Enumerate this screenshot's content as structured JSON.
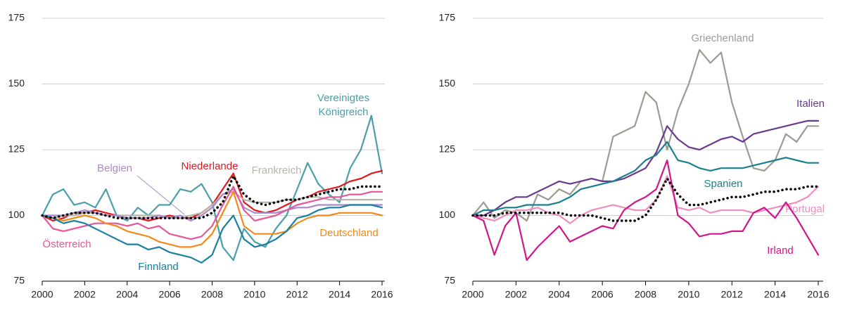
{
  "chart_data": [
    {
      "type": "line",
      "xlim": [
        2000,
        2016
      ],
      "xticks": [
        2000,
        2002,
        2004,
        2006,
        2008,
        2010,
        2012,
        2014,
        2016
      ],
      "ylim": [
        75,
        175
      ],
      "yticks": [
        75,
        100,
        125,
        150,
        175
      ],
      "grid": true,
      "x": [
        2000,
        2000.5,
        2001,
        2001.5,
        2002,
        2002.5,
        2003,
        2003.5,
        2004,
        2004.5,
        2005,
        2005.5,
        2006,
        2006.5,
        2007,
        2007.5,
        2008,
        2008.5,
        2009,
        2009.5,
        2010,
        2010.5,
        2011,
        2011.5,
        2012,
        2012.5,
        2013,
        2013.5,
        2014,
        2014.5,
        2015,
        2015.5,
        2016
      ],
      "series": [
        {
          "name": "Vereinigtes Königreich",
          "color": "#4a9fa8",
          "values": [
            100,
            108,
            110,
            104,
            105,
            103,
            110,
            100,
            98,
            103,
            100,
            104,
            104,
            110,
            109,
            112,
            105,
            88,
            83,
            95,
            90,
            88,
            95,
            100,
            110,
            120,
            112,
            108,
            105,
            118,
            125,
            138,
            116
          ]
        },
        {
          "name": "Niederlande",
          "color": "#e0191f",
          "values": [
            100,
            98,
            99,
            101,
            101,
            102,
            101,
            100,
            99,
            99,
            98,
            99,
            100,
            99,
            99,
            101,
            104,
            110,
            116,
            105,
            102,
            101,
            102,
            104,
            106,
            107,
            109,
            110,
            111,
            113,
            114,
            116,
            117
          ]
        },
        {
          "name": "Frankreich",
          "color": "#b7b5a7",
          "values": [
            100,
            99,
            100,
            100,
            101,
            101,
            100,
            100,
            100,
            100,
            100,
            100,
            99,
            99,
            100,
            101,
            104,
            108,
            109,
            106,
            105,
            105,
            105,
            106,
            106,
            107,
            107,
            106,
            106,
            106,
            106,
            106,
            106
          ]
        },
        {
          "name": "Belgien",
          "color": "#a98bcb",
          "values": [
            100,
            100,
            100,
            101,
            102,
            101,
            100,
            100,
            99,
            99,
            99,
            100,
            99,
            100,
            98,
            100,
            103,
            108,
            110,
            103,
            101,
            101,
            101,
            102,
            103,
            103,
            104,
            104,
            104,
            104,
            104,
            104,
            104
          ]
        },
        {
          "name": "Österreich",
          "color": "#e8559b",
          "values": [
            100,
            95,
            94,
            95,
            96,
            97,
            97,
            97,
            96,
            97,
            95,
            96,
            93,
            92,
            91,
            92,
            96,
            104,
            111,
            102,
            98,
            99,
            100,
            102,
            104,
            105,
            106,
            107,
            107,
            108,
            108,
            109,
            109
          ]
        },
        {
          "name": "Deutschland",
          "color": "#f28a1a",
          "values": [
            100,
            99,
            98,
            99,
            100,
            99,
            97,
            96,
            94,
            93,
            92,
            90,
            89,
            88,
            88,
            89,
            93,
            101,
            109,
            96,
            93,
            93,
            93,
            94,
            97,
            99,
            100,
            100,
            101,
            101,
            101,
            101,
            100
          ]
        },
        {
          "name": "Finnland",
          "color": "#1a80a0",
          "values": [
            100,
            99,
            97,
            98,
            97,
            95,
            93,
            91,
            89,
            89,
            87,
            88,
            86,
            85,
            84,
            82,
            85,
            95,
            100,
            91,
            88,
            89,
            91,
            94,
            99,
            100,
            102,
            103,
            103,
            104,
            104,
            104,
            103
          ]
        },
        {
          "color": "#000000",
          "line_style": "dotted",
          "values": [
            100,
            99,
            100,
            101,
            101,
            101,
            100,
            99,
            99,
            99,
            99,
            99,
            99,
            99,
            99,
            99,
            101,
            105,
            115,
            108,
            105,
            104,
            105,
            106,
            106,
            107,
            108,
            109,
            110,
            110,
            111,
            111,
            111
          ]
        }
      ]
    },
    {
      "type": "line",
      "xlim": [
        2000,
        2016
      ],
      "xticks": [
        2000,
        2002,
        2004,
        2006,
        2008,
        2010,
        2012,
        2014,
        2016
      ],
      "ylim": [
        75,
        175
      ],
      "yticks": [
        75,
        100,
        125,
        150,
        175
      ],
      "grid": true,
      "x": [
        2000,
        2000.5,
        2001,
        2001.5,
        2002,
        2002.5,
        2003,
        2003.5,
        2004,
        2004.5,
        2005,
        2005.5,
        2006,
        2006.5,
        2007,
        2007.5,
        2008,
        2008.5,
        2009,
        2009.5,
        2010,
        2010.5,
        2011,
        2011.5,
        2012,
        2012.5,
        2013,
        2013.5,
        2014,
        2014.5,
        2015,
        2015.5,
        2016
      ],
      "series": [
        {
          "name": "Griechenland",
          "color": "#9c9b91",
          "values": [
            100,
            105,
            99,
            102,
            101,
            98,
            108,
            106,
            110,
            108,
            113,
            114,
            113,
            130,
            132,
            134,
            147,
            143,
            125,
            140,
            150,
            163,
            158,
            162,
            143,
            130,
            118,
            117,
            121,
            131,
            128,
            134,
            134
          ]
        },
        {
          "name": "Italien",
          "color": "#6b3a8f",
          "values": [
            100,
            100,
            102,
            105,
            107,
            107,
            109,
            111,
            113,
            112,
            113,
            114,
            113,
            113,
            114,
            116,
            118,
            124,
            134,
            129,
            126,
            125,
            127,
            129,
            130,
            128,
            131,
            132,
            133,
            134,
            135,
            136,
            136
          ]
        },
        {
          "name": "Spanien",
          "color": "#1b7f8f",
          "values": [
            100,
            102,
            102,
            103,
            103,
            104,
            104,
            104,
            105,
            107,
            110,
            111,
            112,
            113,
            115,
            117,
            121,
            123,
            128,
            121,
            120,
            118,
            117,
            118,
            118,
            118,
            119,
            120,
            121,
            122,
            121,
            120,
            120
          ]
        },
        {
          "name": "Portugal",
          "color": "#ef8fbf",
          "values": [
            100,
            99,
            98,
            100,
            102,
            102,
            103,
            101,
            100,
            97,
            100,
            102,
            103,
            104,
            103,
            102,
            102,
            106,
            115,
            103,
            102,
            103,
            101,
            102,
            102,
            102,
            101,
            102,
            103,
            104,
            105,
            107,
            111
          ]
        },
        {
          "name": "Irland",
          "color": "#d1168a",
          "values": [
            100,
            98,
            85,
            96,
            101,
            83,
            88,
            92,
            96,
            90,
            92,
            94,
            96,
            95,
            102,
            105,
            107,
            110,
            121,
            100,
            97,
            92,
            93,
            93,
            94,
            94,
            101,
            103,
            99,
            105,
            99,
            92,
            85
          ]
        },
        {
          "color": "#000000",
          "line_style": "dotted",
          "values": [
            100,
            100,
            100,
            101,
            101,
            101,
            101,
            101,
            101,
            100,
            100,
            100,
            99,
            98,
            98,
            98,
            100,
            106,
            114,
            108,
            104,
            104,
            105,
            106,
            107,
            107,
            108,
            109,
            109,
            110,
            110,
            111,
            111
          ]
        }
      ]
    }
  ]
}
